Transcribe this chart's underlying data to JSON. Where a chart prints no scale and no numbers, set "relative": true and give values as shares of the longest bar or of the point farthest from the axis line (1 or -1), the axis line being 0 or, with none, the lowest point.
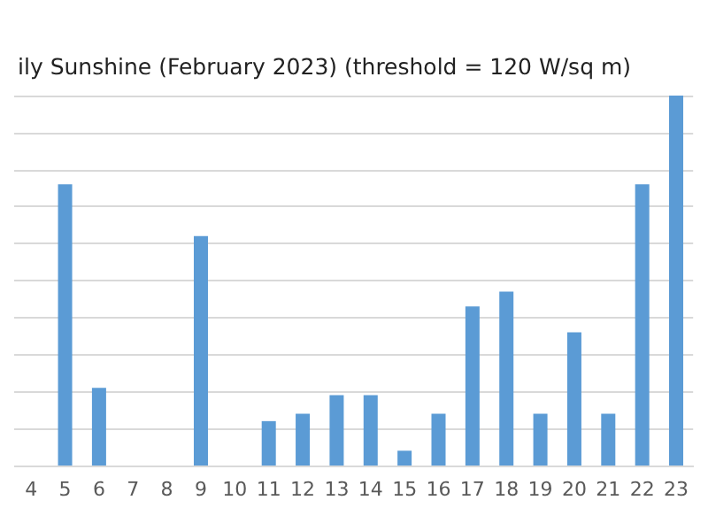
{
  "chart_data": {
    "type": "bar",
    "title": "ily Sunshine (February 2023) (threshold = 120 W/sq m)",
    "categories": [
      "4",
      "5",
      "6",
      "7",
      "8",
      "9",
      "10",
      "11",
      "12",
      "13",
      "14",
      "15",
      "16",
      "17",
      "18",
      "19",
      "20",
      "21",
      "22",
      "23"
    ],
    "values": [
      0,
      0.76,
      0.21,
      0,
      0,
      0.62,
      0,
      0.12,
      0.14,
      0.19,
      0.19,
      0.04,
      0.14,
      0.43,
      0.47,
      0.14,
      0.36,
      0.14,
      0.76,
      1
    ],
    "color": "#5b9bd5",
    "relative": true,
    "grid": "y"
  }
}
